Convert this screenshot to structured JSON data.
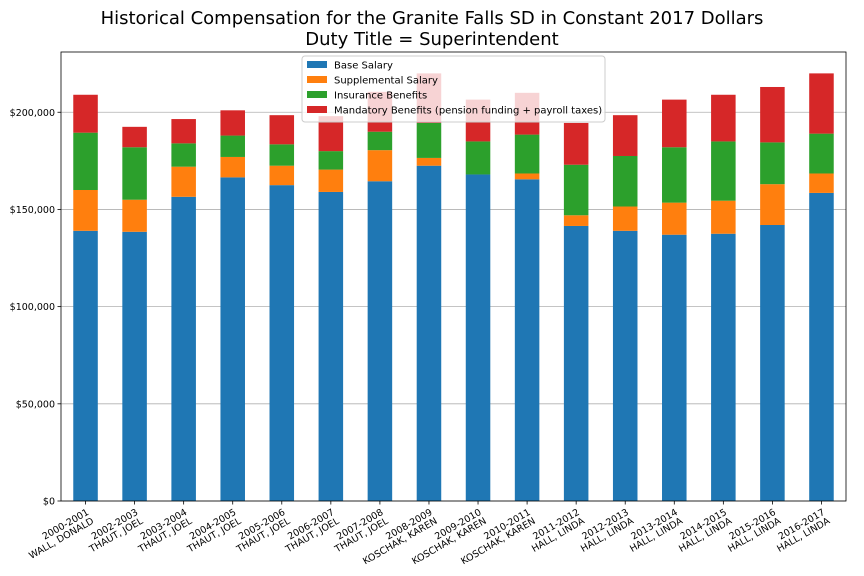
{
  "chart_data": {
    "type": "bar",
    "stacked": true,
    "title": "Historical Compensation for the Granite Falls SD in Constant 2017 Dollars",
    "subtitle": "Duty Title = Superintendent",
    "xlabel": "",
    "ylabel": "",
    "ylim": [
      0,
      231000
    ],
    "yticks": [
      0,
      50000,
      100000,
      150000,
      200000
    ],
    "ytick_labels": [
      "$0",
      "$50,000",
      "$100,000",
      "$150,000",
      "$200,000"
    ],
    "grid": "horizontal",
    "legend_position": "upper center",
    "categories": [
      [
        "2000-2001",
        "WALL, DONALD"
      ],
      [
        "2002-2003",
        "THAUT, JOEL"
      ],
      [
        "2003-2004",
        "THAUT, JOEL"
      ],
      [
        "2004-2005",
        "THAUT, JOEL"
      ],
      [
        "2005-2006",
        "THAUT, JOEL"
      ],
      [
        "2006-2007",
        "THAUT, JOEL"
      ],
      [
        "2007-2008",
        "THAUT, JOEL"
      ],
      [
        "2008-2009",
        "KOSCHAK, KAREN"
      ],
      [
        "2009-2010",
        "KOSCHAK, KAREN"
      ],
      [
        "2010-2011",
        "KOSCHAK, KAREN"
      ],
      [
        "2011-2012",
        "HALL, LINDA"
      ],
      [
        "2012-2013",
        "HALL, LINDA"
      ],
      [
        "2013-2014",
        "HALL, LINDA"
      ],
      [
        "2014-2015",
        "HALL, LINDA"
      ],
      [
        "2015-2016",
        "HALL, LINDA"
      ],
      [
        "2016-2017",
        "HALL, LINDA"
      ]
    ],
    "series": [
      {
        "name": "Base Salary",
        "color": "#1f77b4",
        "values": [
          139000,
          138500,
          156500,
          166500,
          162500,
          159000,
          164500,
          172500,
          168000,
          165500,
          141500,
          139000,
          137000,
          137500,
          142000,
          158500
        ]
      },
      {
        "name": "Supplemental Salary",
        "color": "#ff7f0e",
        "values": [
          21000,
          16500,
          15500,
          10500,
          10000,
          11500,
          16000,
          4000,
          0,
          3000,
          5500,
          12500,
          16500,
          17000,
          21000,
          10000
        ]
      },
      {
        "name": "Insurance Benefits",
        "color": "#2ca02c",
        "values": [
          29500,
          27000,
          12000,
          11000,
          11000,
          9500,
          9500,
          18000,
          17000,
          20000,
          26000,
          26000,
          28500,
          30500,
          21500,
          20500
        ]
      },
      {
        "name": "Mandatory Benefits (pension funding + payroll taxes)",
        "color": "#d62728",
        "values": [
          19500,
          10500,
          12500,
          13000,
          15000,
          18000,
          20500,
          25500,
          21500,
          21500,
          21500,
          21000,
          24500,
          24000,
          28500,
          31000
        ]
      }
    ]
  }
}
